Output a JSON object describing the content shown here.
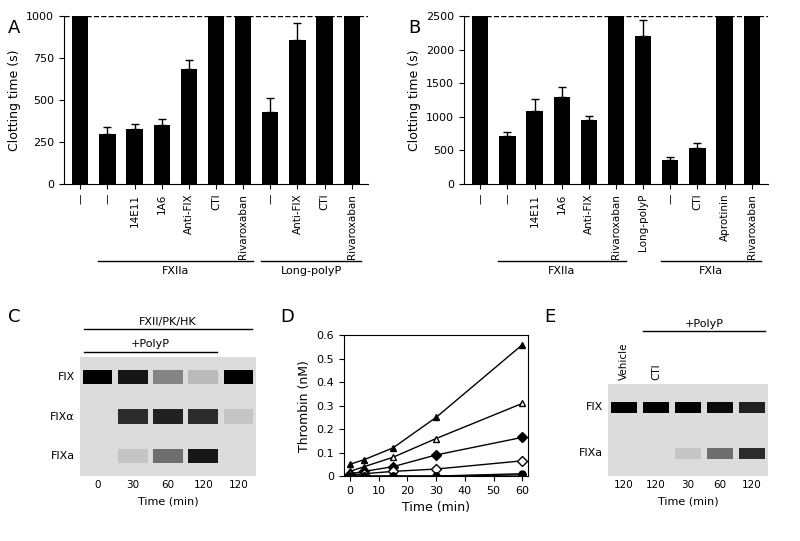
{
  "chart_data": [
    {
      "type": "bar",
      "title": "A",
      "y_label": "Clotting time (s)",
      "categories": [
        "—",
        "—",
        "14E11",
        "1A6",
        "Anti-FIX",
        "CTI",
        "Rivaroxaban",
        "—",
        "Anti-FIX",
        "CTI",
        "Rivaroxaban"
      ],
      "values": [
        1000,
        295,
        330,
        350,
        685,
        1000,
        1000,
        430,
        860,
        1000,
        1000
      ],
      "errors": [
        0,
        45,
        30,
        35,
        55,
        0,
        0,
        85,
        100,
        0,
        0
      ],
      "groups": [
        null,
        "FXIIa",
        "FXIIa",
        "FXIIa",
        "FXIIa",
        "FXIIa",
        "FXIIa",
        "Long-polyP",
        "Long-polyP",
        "Long-polyP",
        "Long-polyP"
      ],
      "color": "#000000",
      "ylim": [
        0,
        1000
      ],
      "yticks": [
        0,
        250,
        500,
        750,
        1000
      ],
      "reference_line": 1000
    },
    {
      "type": "bar",
      "title": "B",
      "y_label": "Clotting time (s)",
      "categories": [
        "—",
        "—",
        "14E11",
        "1A6",
        "Anti-FIX",
        "Rivaroxaban",
        "Long-polyP",
        "—",
        "CTI",
        "Aprotinin",
        "Rivaroxaban"
      ],
      "values": [
        2500,
        720,
        1080,
        1300,
        960,
        2500,
        2210,
        360,
        530,
        2500,
        2500
      ],
      "errors": [
        0,
        50,
        180,
        150,
        50,
        0,
        230,
        40,
        80,
        0,
        0
      ],
      "groups": [
        null,
        "FXIIa",
        "FXIIa",
        "FXIIa",
        "FXIIa",
        "FXIIa",
        null,
        "FXIa",
        "FXIa",
        "FXIa",
        "FXIa"
      ],
      "color": "#000000",
      "ylim": [
        0,
        2500
      ],
      "yticks": [
        0,
        500,
        1000,
        1500,
        2000,
        2500
      ],
      "reference_line": 2500
    },
    {
      "type": "line",
      "title": "D",
      "x_label": "Time (min)",
      "y_label": "Thrombin (nM)",
      "x": [
        0,
        5,
        15,
        30,
        60
      ],
      "series": [
        {
          "color": "#000000",
          "marker": "filled_triangle",
          "values": [
            0.05,
            0.07,
            0.12,
            0.25,
            0.56
          ]
        },
        {
          "color": "#000000",
          "marker": "open_triangle",
          "values": [
            0.02,
            0.04,
            0.08,
            0.16,
            0.31
          ]
        },
        {
          "color": "#000000",
          "marker": "filled_diamond",
          "values": [
            0.01,
            0.02,
            0.04,
            0.09,
            0.165
          ]
        },
        {
          "color": "#000000",
          "marker": "open_diamond",
          "values": [
            0.005,
            0.01,
            0.02,
            0.03,
            0.065
          ]
        },
        {
          "color": "#000000",
          "marker": "open_circle",
          "values": [
            0,
            0,
            0,
            0,
            0.005
          ]
        },
        {
          "color": "#000000",
          "marker": "filled_circle",
          "values": [
            0,
            0,
            0,
            0,
            0.01
          ]
        }
      ],
      "xlim": [
        -2,
        62
      ],
      "xticks": [
        0,
        10,
        20,
        30,
        40,
        50,
        60
      ],
      "ylim": [
        0,
        0.6
      ],
      "yticks": [
        0,
        0.1,
        0.2,
        0.3,
        0.4,
        0.5,
        0.6
      ]
    }
  ],
  "gels": [
    {
      "title": "C",
      "headers": [
        {
          "label": "FXII/PK/HK",
          "span": [
            0,
            4
          ]
        },
        {
          "label": "+PolyP",
          "span": [
            0,
            3
          ]
        }
      ],
      "bands": [
        {
          "label": "FIX",
          "intensity": [
            1,
            0.9,
            0.4,
            0.15,
            1
          ]
        },
        {
          "label": "FIXα",
          "intensity": [
            0,
            0.8,
            0.85,
            0.8,
            0.1
          ]
        },
        {
          "label": "FIXa",
          "intensity": [
            0,
            0.1,
            0.5,
            0.9,
            0
          ]
        }
      ],
      "lane_labels": [
        0,
        30,
        60,
        120,
        120
      ],
      "x_label": "Time (min)"
    },
    {
      "title": "E",
      "headers": [
        {
          "label": "+PolyP",
          "span": [
            1,
            4
          ]
        }
      ],
      "top_labels": [
        "Vehicle",
        "CTI",
        null,
        null,
        null
      ],
      "bands": [
        {
          "label": "FIX",
          "intensity": [
            1,
            1,
            1,
            0.95,
            0.85
          ]
        },
        {
          "label": "FIXa",
          "intensity": [
            0,
            0,
            0.1,
            0.5,
            0.8
          ]
        }
      ],
      "lane_labels": [
        120,
        120,
        30,
        60,
        120
      ],
      "x_label": "Time (min)"
    }
  ]
}
